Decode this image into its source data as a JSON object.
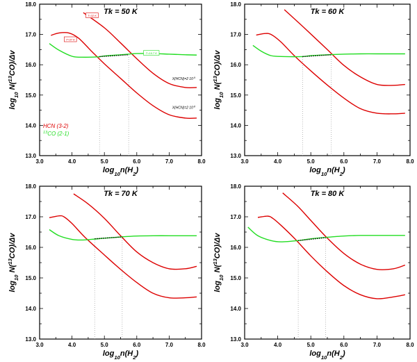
{
  "chart_data": [
    {
      "type": "line",
      "title": "Tk = 50 K",
      "xlabel": "log10n(H2)",
      "ylabel": "log10 N(13CO)/Δv",
      "xlim": [
        3.0,
        8.0
      ],
      "ylim": [
        13.0,
        18.0
      ],
      "xticks": [
        "3.0",
        "4.0",
        "5.0",
        "6.0",
        "7.0",
        "8.0"
      ],
      "yticks": [
        "13.0",
        "14.0",
        "15.0",
        "16.0",
        "17.0",
        "18.0"
      ],
      "series": [
        {
          "name": "HCN upper (X(HCN)=2 10^-9)",
          "color": "#dd0000",
          "x": [
            4.35,
            5.0,
            5.5,
            6.0,
            6.5,
            7.0,
            7.5,
            7.85
          ],
          "y": [
            17.72,
            17.22,
            16.72,
            16.2,
            15.72,
            15.38,
            15.25,
            15.25
          ]
        },
        {
          "name": "HCN lower (X(HCN)=2 10^-8)",
          "color": "#dd0000",
          "x": [
            3.35,
            3.6,
            3.9,
            4.2,
            4.6,
            5.0,
            5.5,
            6.0,
            6.5,
            7.0,
            7.5,
            7.85
          ],
          "y": [
            16.97,
            17.05,
            17.05,
            16.88,
            16.45,
            16.03,
            15.55,
            15.07,
            14.65,
            14.35,
            14.24,
            14.24
          ]
        },
        {
          "name": "13CO (2-1)",
          "color": "#22dd22",
          "x": [
            3.3,
            3.6,
            4.0,
            4.3,
            4.8,
            5.0,
            5.5,
            6.0,
            6.5,
            7.0,
            7.5,
            7.85
          ],
          "y": [
            16.7,
            16.48,
            16.28,
            16.25,
            16.26,
            16.29,
            16.33,
            16.37,
            16.37,
            16.35,
            16.33,
            16.32
          ]
        }
      ],
      "dotted_segment": {
        "x": [
          4.85,
          5.75
        ],
        "y": [
          16.27,
          16.33
        ]
      },
      "vlines": [
        {
          "x": 4.85,
          "y": 16.27
        },
        {
          "x": 5.75,
          "y": 16.33
        }
      ],
      "annotations": [
        {
          "text": "T=32 K",
          "x": 4.62,
          "y": 17.62,
          "color": "#dd0000"
        },
        {
          "text": "T=37 K",
          "x": 3.95,
          "y": 16.83,
          "color": "#dd0000"
        },
        {
          "text": "T=16.7 K",
          "x": 6.45,
          "y": 16.38,
          "color": "#22dd22"
        },
        {
          "text": "X(HCN)=2 10^-9",
          "x": 7.45,
          "y": 15.5,
          "color": "#000000"
        },
        {
          "text": "X(HCN)=2 10^-8",
          "x": 7.45,
          "y": 14.55,
          "color": "#000000"
        }
      ],
      "legend": [
        {
          "label": "HCN (3-2)",
          "color": "#dd0000"
        },
        {
          "label": "13CO (2-1)",
          "color": "#22dd22"
        }
      ]
    },
    {
      "type": "line",
      "title": "Tk = 60 K",
      "xlabel": "log10n(H2)",
      "ylabel": "log10 N(13CO)/Δv",
      "xlim": [
        3.0,
        8.0
      ],
      "ylim": [
        13.0,
        18.0
      ],
      "xticks": [
        "3.0",
        "4.0",
        "5.0",
        "6.0",
        "7.0",
        "8.0"
      ],
      "yticks": [
        "13.0",
        "14.0",
        "15.0",
        "16.0",
        "17.0",
        "18.0"
      ],
      "series": [
        {
          "name": "HCN upper",
          "color": "#dd0000",
          "x": [
            4.2,
            4.8,
            5.5,
            6.0,
            6.5,
            7.0,
            7.5,
            7.85
          ],
          "y": [
            17.82,
            17.22,
            16.5,
            15.98,
            15.6,
            15.35,
            15.32,
            15.35
          ]
        },
        {
          "name": "HCN lower",
          "color": "#dd0000",
          "x": [
            3.35,
            3.6,
            3.8,
            4.1,
            4.5,
            5.0,
            5.5,
            6.0,
            6.5,
            7.0,
            7.5,
            7.85
          ],
          "y": [
            16.98,
            17.03,
            17.0,
            16.75,
            16.3,
            15.8,
            15.33,
            14.9,
            14.55,
            14.4,
            14.38,
            14.4
          ]
        },
        {
          "name": "13CO (2-1)",
          "color": "#22dd22",
          "x": [
            3.25,
            3.5,
            3.8,
            4.2,
            4.75,
            5.0,
            5.5,
            6.0,
            6.5,
            7.0,
            7.5,
            7.85
          ],
          "y": [
            16.64,
            16.45,
            16.3,
            16.27,
            16.27,
            16.3,
            16.33,
            16.35,
            16.36,
            16.36,
            16.36,
            16.36
          ]
        }
      ],
      "dotted_segment": {
        "x": [
          4.75,
          5.62
        ],
        "y": [
          16.27,
          16.33
        ]
      },
      "vlines": [
        {
          "x": 4.75,
          "y": 16.27
        },
        {
          "x": 5.62,
          "y": 16.33
        }
      ],
      "annotations": [],
      "legend": []
    },
    {
      "type": "line",
      "title": "Tk = 70 K",
      "xlabel": "log10n(H2)",
      "ylabel": "log10 N(13CO)/Δv",
      "xlim": [
        3.0,
        8.0
      ],
      "ylim": [
        13.0,
        18.0
      ],
      "xticks": [
        "3.0",
        "4.0",
        "5.0",
        "6.0",
        "7.0",
        "8.0"
      ],
      "yticks": [
        "13.0",
        "14.0",
        "15.0",
        "16.0",
        "17.0",
        "18.0"
      ],
      "series": [
        {
          "name": "HCN upper",
          "color": "#dd0000",
          "x": [
            4.05,
            4.5,
            5.0,
            5.5,
            6.0,
            6.5,
            7.0,
            7.5,
            7.85
          ],
          "y": [
            17.75,
            17.42,
            16.95,
            16.38,
            15.85,
            15.5,
            15.3,
            15.3,
            15.38
          ]
        },
        {
          "name": "HCN lower",
          "color": "#dd0000",
          "x": [
            3.3,
            3.6,
            3.75,
            4.0,
            4.4,
            5.0,
            5.5,
            6.0,
            6.5,
            7.0,
            7.5,
            7.85
          ],
          "y": [
            16.97,
            17.03,
            17.0,
            16.78,
            16.33,
            15.75,
            15.28,
            14.85,
            14.5,
            14.35,
            14.35,
            14.38
          ]
        },
        {
          "name": "13CO (2-1)",
          "color": "#22dd22",
          "x": [
            3.3,
            3.6,
            4.0,
            4.3,
            4.7,
            5.0,
            5.5,
            6.0,
            6.5,
            7.0,
            7.5,
            7.85
          ],
          "y": [
            16.58,
            16.38,
            16.26,
            16.24,
            16.27,
            16.3,
            16.34,
            16.37,
            16.38,
            16.38,
            16.38,
            16.38
          ]
        }
      ],
      "dotted_segment": {
        "x": [
          4.7,
          5.55
        ],
        "y": [
          16.28,
          16.34
        ]
      },
      "vlines": [
        {
          "x": 4.7,
          "y": 16.28
        },
        {
          "x": 5.55,
          "y": 16.34
        }
      ],
      "annotations": [],
      "legend": []
    },
    {
      "type": "line",
      "title": "Tk = 80 K",
      "xlabel": "log10n(H2)",
      "ylabel": "log10 N(13CO)/Δv",
      "xlim": [
        3.0,
        8.0
      ],
      "ylim": [
        13.0,
        18.0
      ],
      "xticks": [
        "3.0",
        "4.0",
        "5.0",
        "6.0",
        "7.0",
        "8.0"
      ],
      "yticks": [
        "13.0",
        "14.0",
        "15.0",
        "16.0",
        "17.0",
        "18.0"
      ],
      "series": [
        {
          "name": "HCN upper",
          "color": "#dd0000",
          "x": [
            4.15,
            4.6,
            5.0,
            5.5,
            6.0,
            6.5,
            7.0,
            7.5,
            7.85
          ],
          "y": [
            17.78,
            17.35,
            16.88,
            16.3,
            15.8,
            15.45,
            15.28,
            15.3,
            15.42
          ]
        },
        {
          "name": "HCN lower",
          "color": "#dd0000",
          "x": [
            3.4,
            3.7,
            3.85,
            4.1,
            4.5,
            5.0,
            5.5,
            6.0,
            6.5,
            7.0,
            7.5,
            7.85
          ],
          "y": [
            16.98,
            17.02,
            16.95,
            16.72,
            16.3,
            15.72,
            15.2,
            14.75,
            14.45,
            14.32,
            14.38,
            14.45
          ]
        },
        {
          "name": "13CO (2-1)",
          "color": "#22dd22",
          "x": [
            3.1,
            3.4,
            3.8,
            4.1,
            4.6,
            5.0,
            5.5,
            6.0,
            6.5,
            7.0,
            7.5,
            7.85
          ],
          "y": [
            16.66,
            16.38,
            16.22,
            16.18,
            16.22,
            16.28,
            16.33,
            16.37,
            16.39,
            16.39,
            16.39,
            16.39
          ]
        }
      ],
      "dotted_segment": {
        "x": [
          4.62,
          5.45
        ],
        "y": [
          16.22,
          16.32
        ]
      },
      "vlines": [
        {
          "x": 4.62,
          "y": 16.22
        },
        {
          "x": 5.45,
          "y": 16.32
        }
      ],
      "annotations": [],
      "legend": []
    }
  ]
}
